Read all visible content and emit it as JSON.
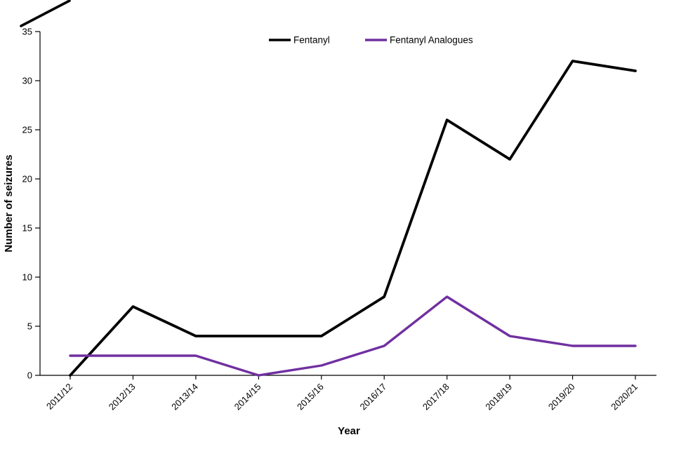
{
  "chart_data": {
    "type": "line",
    "title": "",
    "categories": [
      "2011/12",
      "2012/13",
      "2013/14",
      "2014/15",
      "2015/16",
      "2016/17",
      "2017/18",
      "2018/19",
      "2019/20",
      "2020/21"
    ],
    "series": [
      {
        "name": "Fentanyl",
        "color": "#000000",
        "values": [
          0,
          7,
          4,
          4,
          4,
          8,
          26,
          22,
          32,
          31
        ]
      },
      {
        "name": "Fentanyl Analogues",
        "color": "#7030A0",
        "values": [
          2,
          2,
          2,
          0,
          1,
          3,
          8,
          4,
          3,
          3
        ]
      }
    ],
    "xlabel": "Year",
    "ylabel": "Number of seizures",
    "ylim": [
      0,
      35
    ],
    "ytick_step": 5,
    "grid": false,
    "legend_position": "top-center"
  }
}
